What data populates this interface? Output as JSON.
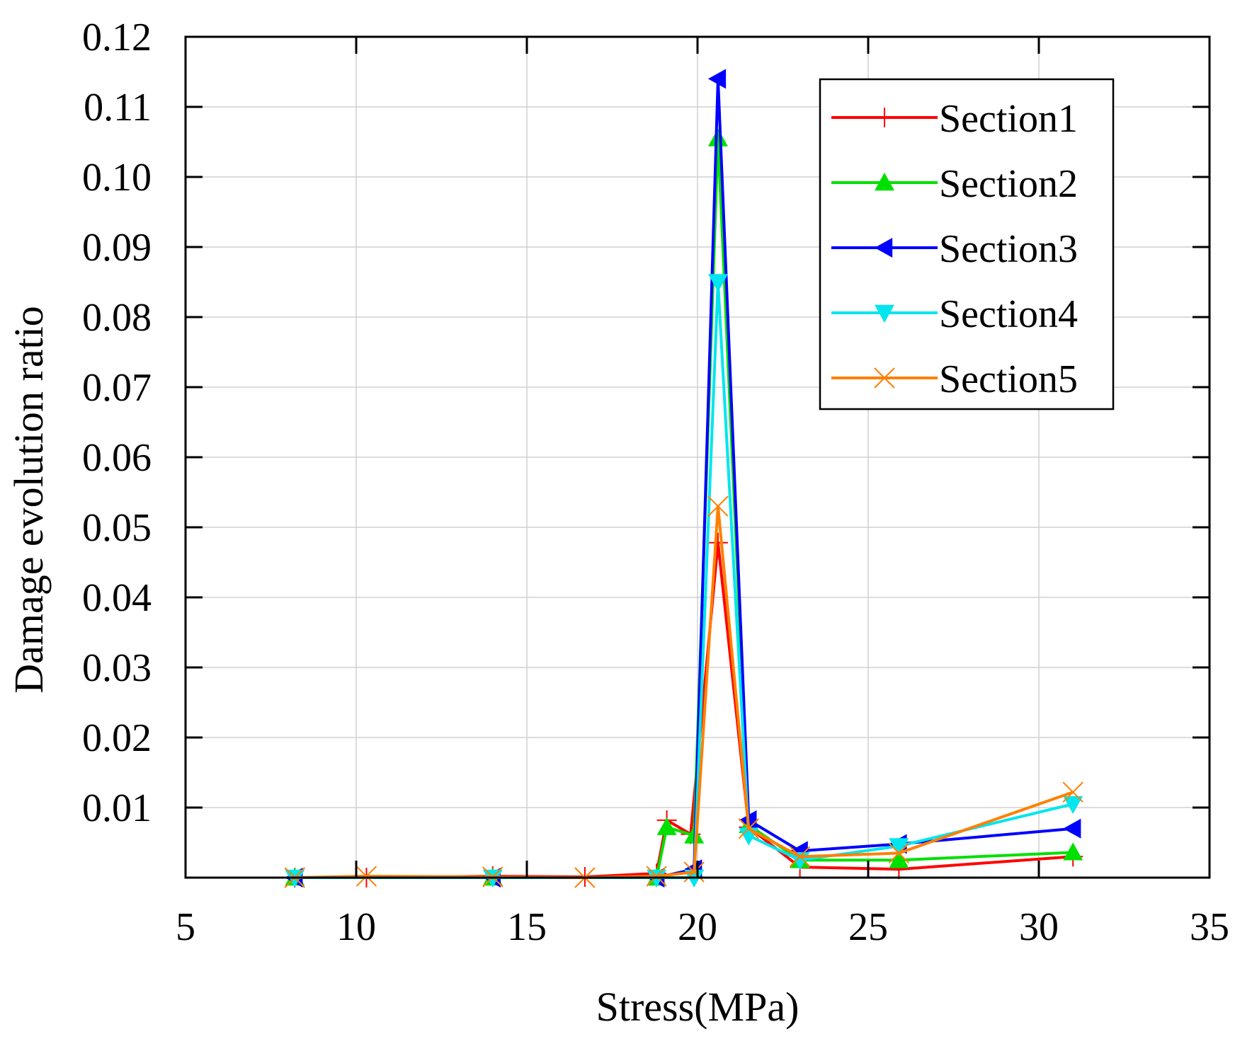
{
  "chart_data": {
    "type": "line",
    "title": "",
    "xlabel": "Stress(MPa)",
    "ylabel": "Damage evolution ratio",
    "xlim": [
      5,
      35
    ],
    "ylim": [
      0,
      0.12
    ],
    "xticks": [
      5,
      10,
      15,
      20,
      25,
      30,
      35
    ],
    "xtick_labels": [
      "5",
      "10",
      "15",
      "20",
      "25",
      "30",
      "35"
    ],
    "yticks": [
      0.01,
      0.02,
      0.03,
      0.04,
      0.05,
      0.06,
      0.07,
      0.08,
      0.09,
      0.1,
      0.11,
      0.12
    ],
    "ytick_labels": [
      "0.01",
      "0.02",
      "0.03",
      "0.04",
      "0.05",
      "0.06",
      "0.07",
      "0.08",
      "0.09",
      "0.10",
      "0.11",
      "0.12"
    ],
    "grid": true,
    "legend_position": "top-right",
    "series": [
      {
        "name": "Section1",
        "color": "#ff0000",
        "marker": "plus",
        "x": [
          8.2,
          10.3,
          14.0,
          16.7,
          18.8,
          19.1,
          19.8,
          20.6,
          21.5,
          23.0,
          25.9,
          31.0
        ],
        "y": [
          0.0,
          0.0,
          0.0002,
          0.0001,
          0.0006,
          0.0082,
          0.0062,
          0.0478,
          0.0072,
          0.0015,
          0.0012,
          0.003
        ]
      },
      {
        "name": "Section2",
        "color": "#00e000",
        "marker": "triangle-up",
        "x": [
          8.2,
          14.0,
          18.8,
          19.1,
          19.9,
          20.6,
          21.5,
          23.0,
          25.9,
          31.0
        ],
        "y": [
          0.0,
          0.0,
          0.0,
          0.0072,
          0.006,
          0.1055,
          0.0075,
          0.0025,
          0.0025,
          0.0036
        ]
      },
      {
        "name": "Section3",
        "color": "#0000ff",
        "marker": "triangle-left",
        "x": [
          8.2,
          14.0,
          18.8,
          19.9,
          20.6,
          21.5,
          23.0,
          25.9,
          31.0
        ],
        "y": [
          0.0,
          0.0,
          0.0,
          0.0012,
          0.114,
          0.0082,
          0.0038,
          0.0048,
          0.007
        ]
      },
      {
        "name": "Section4",
        "color": "#00e5ee",
        "marker": "triangle-down",
        "x": [
          8.2,
          14.0,
          18.8,
          19.9,
          20.6,
          21.5,
          23.0,
          25.9,
          31.0
        ],
        "y": [
          0.0,
          0.0,
          0.0,
          0.0,
          0.085,
          0.006,
          0.0025,
          0.0045,
          0.0105
        ]
      },
      {
        "name": "Section5",
        "color": "#ff8000",
        "marker": "x",
        "x": [
          8.2,
          10.3,
          14.0,
          16.7,
          18.8,
          19.9,
          20.6,
          21.5,
          23.0,
          25.9,
          31.0
        ],
        "y": [
          0.0,
          0.0002,
          0.0001,
          0.0,
          0.0002,
          0.0008,
          0.053,
          0.007,
          0.003,
          0.0035,
          0.0122
        ]
      }
    ]
  }
}
